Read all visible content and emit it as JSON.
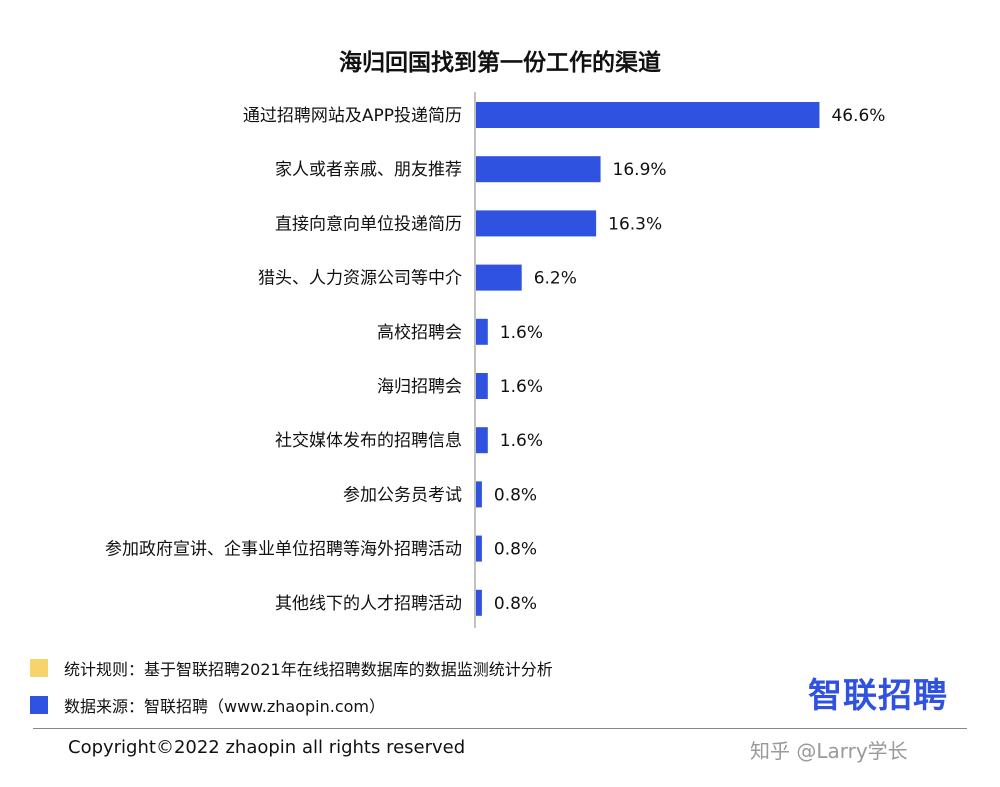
{
  "chart_data": {
    "type": "bar",
    "orientation": "horizontal",
    "title": "海归回国找到第一份工作的渠道",
    "categories": [
      "通过招聘网站及APP投递简历",
      "家人或者亲戚、朋友推荐",
      "直接向意向单位投递简历",
      "猎头、人力资源公司等中介",
      "高校招聘会",
      "海归招聘会",
      "社交媒体发布的招聘信息",
      "参加公务员考试",
      "参加政府宣讲、企事业单位招聘等海外招聘活动",
      "其他线下的人才招聘活动"
    ],
    "values": [
      46.6,
      16.9,
      16.3,
      6.2,
      1.6,
      1.6,
      1.6,
      0.8,
      0.8,
      0.8
    ],
    "value_labels": [
      "46.6%",
      "16.9%",
      "16.3%",
      "6.2%",
      "1.6%",
      "1.6%",
      "1.6%",
      "0.8%",
      "0.8%",
      "0.8%"
    ],
    "bar_color": "#2f52e0",
    "grid": false
  },
  "notes": {
    "rule_text": "统计规则：基于智联招聘2021年在线招聘数据库的数据监测统计分析",
    "rule_color": "#f7d36b",
    "source_text": "数据来源：智联招聘（www.zhaopin.com）",
    "source_color": "#2f52e0"
  },
  "copyright": "Copyright©2022 zhaopin all rights reserved",
  "logo_text": "智联招聘",
  "watermark": "知乎 @Larry学长"
}
